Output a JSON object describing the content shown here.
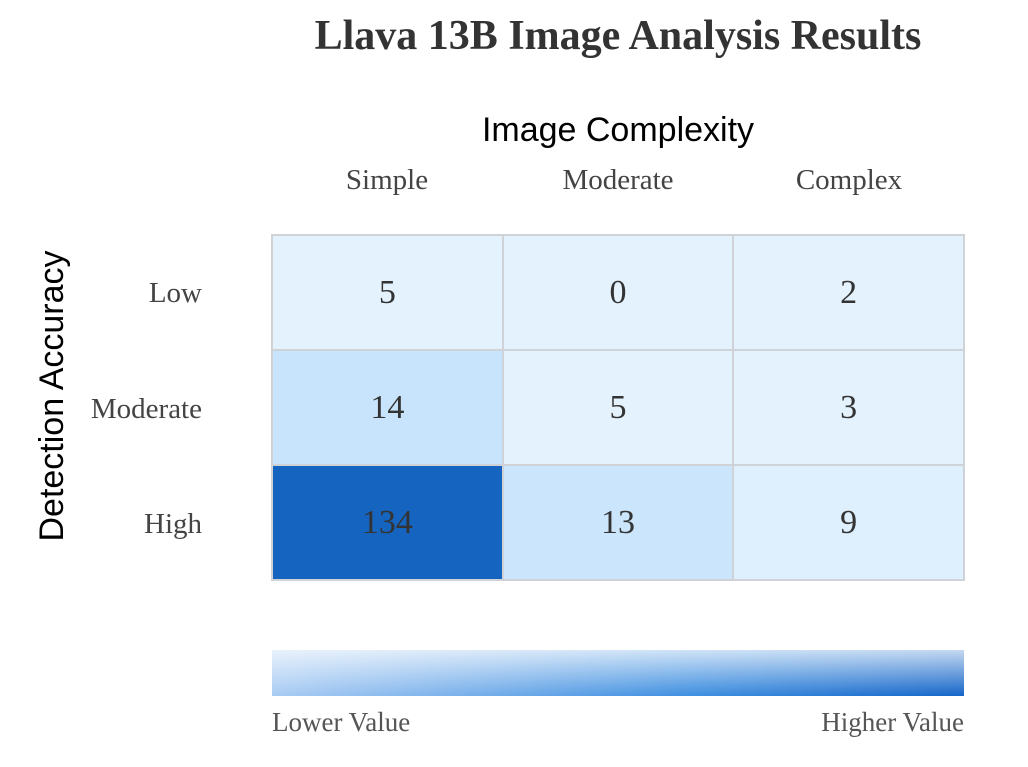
{
  "chart_data": {
    "type": "heatmap",
    "title": "Llava 13B Image Analysis Results",
    "xlabel": "Image Complexity",
    "ylabel": "Detection Accuracy",
    "x_categories": [
      "Simple",
      "Moderate",
      "Complex"
    ],
    "y_categories": [
      "Low",
      "Moderate",
      "High"
    ],
    "values": [
      [
        5,
        0,
        2
      ],
      [
        14,
        5,
        3
      ],
      [
        134,
        13,
        9
      ]
    ],
    "colorscale": {
      "low_label": "Lower Value",
      "high_label": "Higher Value",
      "low_color": "#e3f2fd",
      "mid_color": "#90caf9",
      "high_color": "#1565c0"
    }
  }
}
